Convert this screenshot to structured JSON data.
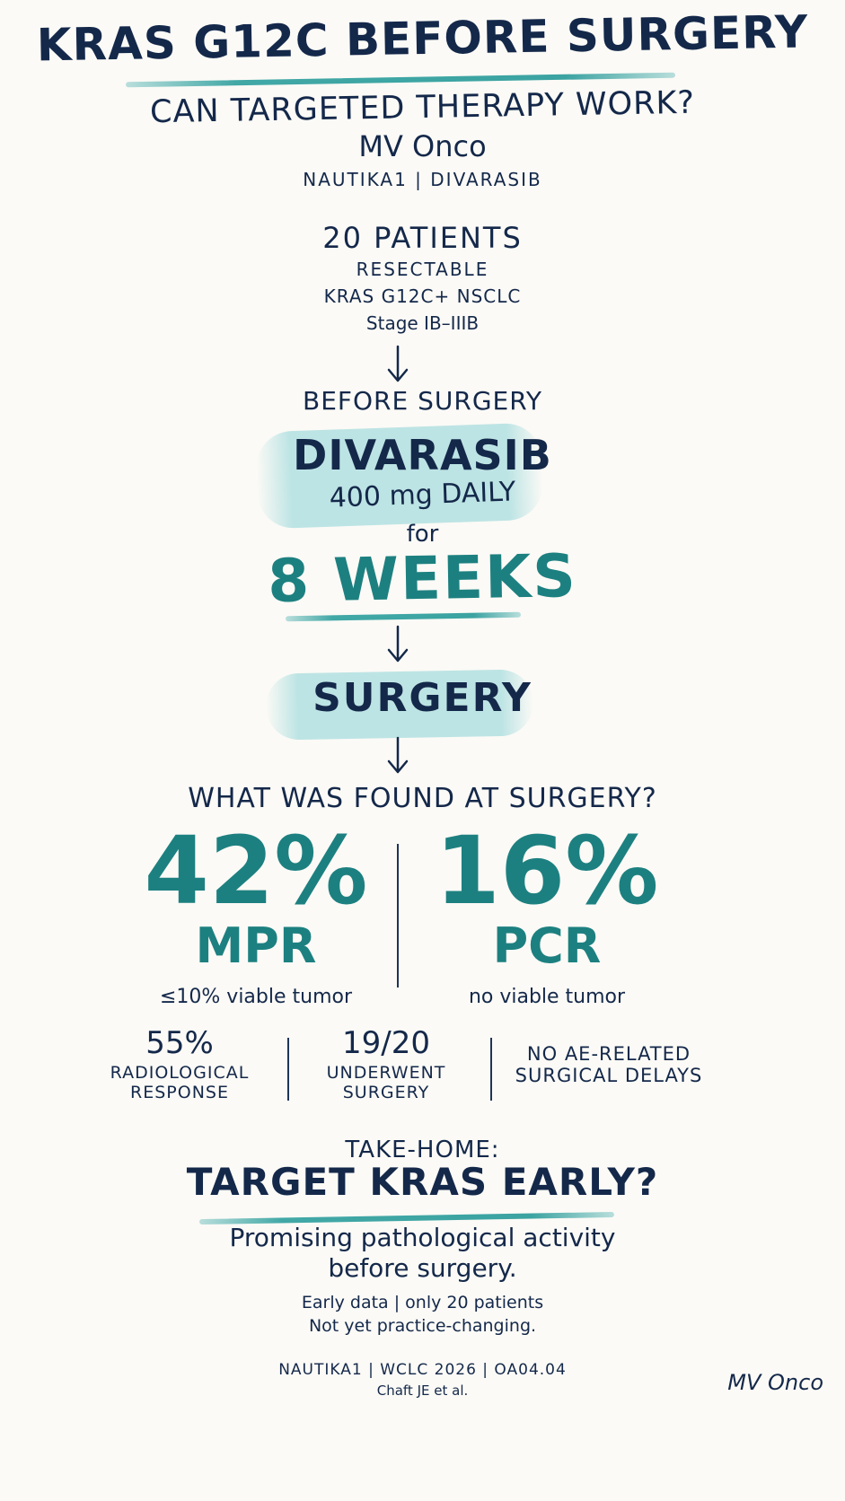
{
  "header": {
    "title": "KRAS G12C BEFORE SURGERY",
    "subtitle": "CAN TARGETED THERAPY WORK?",
    "brand": "MV Onco",
    "trial_line": "NAUTIKA1 | DIVARASIB"
  },
  "population": {
    "count_label": "20 PATIENTS",
    "line1": "RESECTABLE",
    "line2": "KRAS G12C+ NSCLC",
    "line3": "Stage IB–IIIB"
  },
  "treatment": {
    "phase_label": "BEFORE SURGERY",
    "drug": "DIVARASIB",
    "dose": "400 mg DAILY",
    "for_label": "for",
    "duration": "8 WEEKS"
  },
  "surgery": {
    "label": "SURGERY"
  },
  "findings": {
    "question": "WHAT WAS FOUND AT SURGERY?",
    "left": {
      "value": "42%",
      "label": "MPR",
      "desc": "≤10% viable tumor"
    },
    "right": {
      "value": "16%",
      "label": "PCR",
      "desc": "no viable tumor"
    }
  },
  "secondary": [
    {
      "value": "55%",
      "line1": "RADIOLOGICAL",
      "line2": "RESPONSE"
    },
    {
      "value": "19/20",
      "line1": "UNDERWENT",
      "line2": "SURGERY"
    },
    {
      "value": "",
      "line1": "NO AE-RELATED",
      "line2": "SURGICAL DELAYS"
    }
  ],
  "takehome": {
    "label": "TAKE-HOME:",
    "headline": "TARGET KRAS EARLY?",
    "line1": "Promising pathological activity",
    "line2": "before surgery.",
    "caveat1": "Early data | only 20 patients",
    "caveat2": "Not yet practice-changing."
  },
  "footer": {
    "citation": "NAUTIKA1 | WCLC 2026 | OA04.04",
    "authors": "Chaft JE et al.",
    "signature": "MV Onco"
  },
  "colors": {
    "ink": "#14284a",
    "teal": "#1d8080",
    "highlight": "#b2e0e1",
    "background": "#fbfaf6"
  }
}
